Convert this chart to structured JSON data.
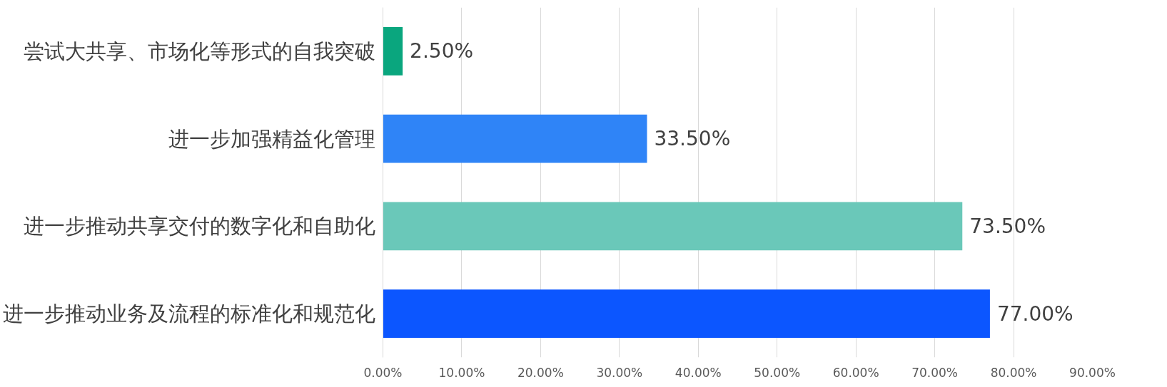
{
  "chart_data": {
    "type": "bar",
    "orientation": "horizontal",
    "categories": [
      "尝试大共享、市场化等形式的自我突破",
      "进一步加强精益化管理",
      "进一步推动共享交付的数字化和自助化",
      "进一步推动业务及流程的标准化和规范化"
    ],
    "values": [
      2.5,
      33.5,
      73.5,
      77.0
    ],
    "colors": [
      "#0aa67e",
      "#2f84f7",
      "#6ac8b9",
      "#0c56ff"
    ],
    "value_labels": [
      "2.50%",
      "33.50%",
      "73.50%",
      "77.00%"
    ],
    "xlim": [
      0,
      90
    ],
    "xticks": [
      {
        "value": 0,
        "label": "0.00%"
      },
      {
        "value": 10,
        "label": "10.00%"
      },
      {
        "value": 20,
        "label": "20.00%"
      },
      {
        "value": 30,
        "label": "30.00%"
      },
      {
        "value": 40,
        "label": "40.00%"
      },
      {
        "value": 50,
        "label": "50.00%"
      },
      {
        "value": 60,
        "label": "60.00%"
      },
      {
        "value": 70,
        "label": "70.00%"
      },
      {
        "value": 80,
        "label": "80.00%"
      },
      {
        "value": 90,
        "label": "90.00%"
      }
    ],
    "grid": "x"
  }
}
